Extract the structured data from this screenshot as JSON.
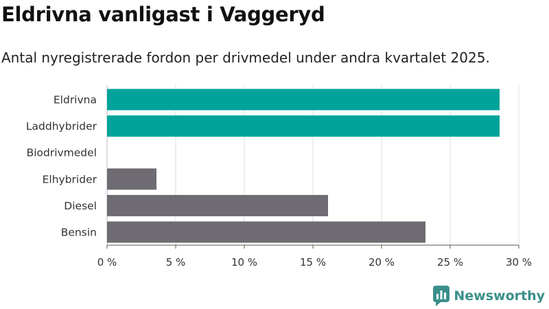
{
  "chart_data": {
    "type": "bar",
    "orientation": "horizontal",
    "title": "Eldrivna vanligast i Vaggeryd",
    "subtitle": "Antal nyregistrerade fordon per drivmedel under andra kvartalet 2025.",
    "categories": [
      "Eldrivna",
      "Laddhybrider",
      "Biodrivmedel",
      "Elhybrider",
      "Diesel",
      "Bensin"
    ],
    "values": [
      28.6,
      28.6,
      0,
      3.6,
      16.1,
      23.2
    ],
    "bar_colors": [
      "#00a39a",
      "#00a39a",
      "#00a39a",
      "#6e6c72",
      "#6e6c72",
      "#6e6c72"
    ],
    "xlim": [
      0,
      30
    ],
    "xticks": [
      0,
      5,
      10,
      15,
      20,
      25,
      30
    ],
    "xtick_labels": [
      "0 %",
      "5 %",
      "10 %",
      "15 %",
      "20 %",
      "25 %",
      "30 %"
    ],
    "grid": true
  },
  "brand": {
    "name": "Newsworthy",
    "color": "#3a8f8a",
    "icon": "newsworthy-logo-icon"
  }
}
